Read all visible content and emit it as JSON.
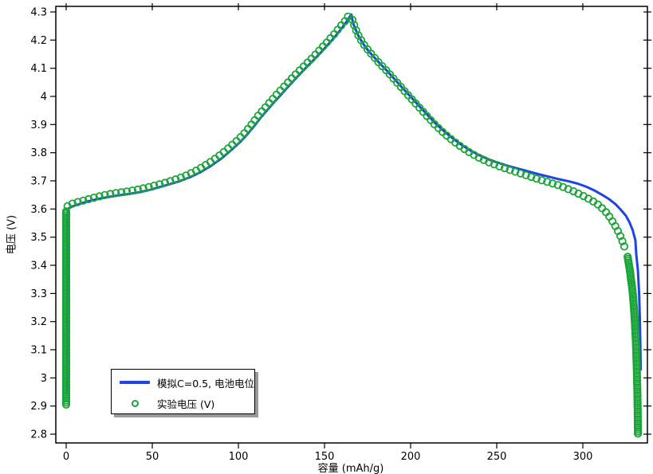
{
  "chart_data": {
    "type": "line",
    "title": "",
    "xlabel": "容量 (mAh/g)",
    "ylabel": "电压 (V)",
    "xlim": [
      -6.0,
      337.5
    ],
    "ylim": [
      2.769,
      4.3198
    ],
    "grid": false,
    "frame_color": "#000000",
    "x_ticks": {
      "values": [
        0,
        50,
        100,
        150,
        200,
        250,
        300
      ],
      "labels": [
        "0",
        "50",
        "100",
        "150",
        "200",
        "250",
        "300"
      ]
    },
    "y_ticks": {
      "values": [
        4.3,
        4.2,
        4.1,
        4.0,
        3.9,
        3.8,
        3.7,
        3.6,
        3.5,
        3.4,
        3.3,
        3.2,
        3.1,
        3.0,
        2.9,
        2.8
      ],
      "labels": [
        "4.3",
        "4.2",
        "4.1",
        "4",
        "3.9",
        "3.8",
        "3.7",
        "3.6",
        "3.5",
        "3.4",
        "3.3",
        "3.2",
        "3.1",
        "3",
        "2.9",
        "2.8"
      ]
    },
    "legend": {
      "position": "bottom-left",
      "entries": [
        {
          "swatch": "line",
          "label": "模拟C=0.5, 电池电位"
        },
        {
          "swatch": "circle-open",
          "label": "实验电压 (V)"
        }
      ]
    },
    "series": [
      {
        "name": "模拟C=0.5, 电池电位",
        "type": "line",
        "color": "#1c45e1",
        "width": 3,
        "points": [
          [
            0.5,
            2.95
          ],
          [
            0.5,
            3.3
          ],
          [
            0.6,
            3.45
          ],
          [
            0.7,
            3.54
          ],
          [
            0.9,
            3.585
          ],
          [
            1.5,
            3.602
          ],
          [
            4,
            3.61
          ],
          [
            8,
            3.618
          ],
          [
            12,
            3.626
          ],
          [
            18,
            3.635
          ],
          [
            24,
            3.642
          ],
          [
            30,
            3.648
          ],
          [
            36,
            3.653
          ],
          [
            42,
            3.659
          ],
          [
            48,
            3.667
          ],
          [
            54,
            3.677
          ],
          [
            60,
            3.688
          ],
          [
            66,
            3.699
          ],
          [
            72,
            3.713
          ],
          [
            78,
            3.731
          ],
          [
            84,
            3.753
          ],
          [
            90,
            3.779
          ],
          [
            96,
            3.81
          ],
          [
            101,
            3.838
          ],
          [
            105,
            3.864
          ],
          [
            109,
            3.893
          ],
          [
            113,
            3.925
          ],
          [
            117,
            3.953
          ],
          [
            121,
            3.981
          ],
          [
            125,
            4.008
          ],
          [
            129,
            4.035
          ],
          [
            134,
            4.068
          ],
          [
            139,
            4.1
          ],
          [
            144,
            4.131
          ],
          [
            149,
            4.163
          ],
          [
            154,
            4.197
          ],
          [
            158,
            4.226
          ],
          [
            161,
            4.25
          ],
          [
            163,
            4.267
          ],
          [
            165,
            4.286
          ],
          [
            165.6,
            4.291
          ],
          [
            166.5,
            4.262
          ],
          [
            168,
            4.238
          ],
          [
            170,
            4.211
          ],
          [
            173,
            4.182
          ],
          [
            176,
            4.158
          ],
          [
            179,
            4.138
          ],
          [
            182,
            4.118
          ],
          [
            186,
            4.093
          ],
          [
            190,
            4.066
          ],
          [
            194,
            4.039
          ],
          [
            198,
            4.012
          ],
          [
            202,
            3.986
          ],
          [
            206,
            3.959
          ],
          [
            210,
            3.933
          ],
          [
            214,
            3.907
          ],
          [
            218,
            3.884
          ],
          [
            222,
            3.863
          ],
          [
            226,
            3.844
          ],
          [
            230,
            3.826
          ],
          [
            235,
            3.807
          ],
          [
            240,
            3.791
          ],
          [
            245,
            3.777
          ],
          [
            250,
            3.766
          ],
          [
            256,
            3.754
          ],
          [
            262,
            3.744
          ],
          [
            268,
            3.734
          ],
          [
            274,
            3.724
          ],
          [
            280,
            3.715
          ],
          [
            286,
            3.706
          ],
          [
            292,
            3.698
          ],
          [
            297,
            3.69
          ],
          [
            302,
            3.679
          ],
          [
            307,
            3.665
          ],
          [
            311,
            3.651
          ],
          [
            315,
            3.636
          ],
          [
            319,
            3.617
          ],
          [
            322,
            3.598
          ],
          [
            325,
            3.576
          ],
          [
            327,
            3.554
          ],
          [
            329,
            3.524
          ],
          [
            330.5,
            3.489
          ],
          [
            331,
            3.44
          ],
          [
            332,
            3.38
          ],
          [
            332.7,
            3.3
          ],
          [
            333.1,
            3.21
          ],
          [
            333.4,
            3.12
          ],
          [
            333.6,
            3.03
          ]
        ]
      },
      {
        "name": "实验电压 (V)",
        "type": "scatter",
        "color": "#1ba538",
        "marker": "circle-open",
        "radius": 4.2,
        "stroke_width": 1.8,
        "segments": [
          {
            "spacing_px": 2.5,
            "points": [
              [
                0,
                2.905
              ],
              [
                0,
                3.595
              ]
            ]
          },
          {
            "spacing_px": 7,
            "points": [
              [
                0.8,
                3.61
              ],
              [
                4,
                3.62
              ],
              [
                10,
                3.63
              ],
              [
                16,
                3.64
              ],
              [
                22,
                3.649
              ],
              [
                28,
                3.656
              ],
              [
                34,
                3.661
              ],
              [
                40,
                3.667
              ],
              [
                46,
                3.675
              ],
              [
                52,
                3.684
              ],
              [
                58,
                3.694
              ],
              [
                64,
                3.706
              ],
              [
                70,
                3.72
              ],
              [
                76,
                3.738
              ],
              [
                82,
                3.76
              ],
              [
                88,
                3.785
              ],
              [
                94,
                3.815
              ],
              [
                99,
                3.842
              ],
              [
                103,
                3.866
              ],
              [
                107,
                3.895
              ],
              [
                111,
                3.928
              ],
              [
                115,
                3.956
              ],
              [
                119,
                3.984
              ],
              [
                123,
                4.012
              ],
              [
                127,
                4.038
              ],
              [
                132,
                4.07
              ],
              [
                137,
                4.101
              ],
              [
                142,
                4.131
              ],
              [
                147,
                4.163
              ],
              [
                152,
                4.196
              ],
              [
                156,
                4.224
              ],
              [
                159,
                4.247
              ],
              [
                162,
                4.268
              ],
              [
                164.5,
                4.292
              ],
              [
                165.3,
                4.3
              ]
            ]
          },
          {
            "spacing_px": 7,
            "points": [
              [
                166.2,
                4.272
              ],
              [
                168,
                4.24
              ],
              [
                170,
                4.212
              ],
              [
                173,
                4.183
              ],
              [
                176,
                4.159
              ],
              [
                179,
                4.138
              ],
              [
                182,
                4.117
              ],
              [
                186,
                4.092
              ],
              [
                190,
                4.064
              ],
              [
                194,
                4.036
              ],
              [
                198,
                4.008
              ],
              [
                202,
                3.981
              ],
              [
                206,
                3.954
              ],
              [
                210,
                3.927
              ],
              [
                214,
                3.9
              ],
              [
                218,
                3.877
              ],
              [
                222,
                3.855
              ],
              [
                226,
                3.836
              ],
              [
                230,
                3.818
              ],
              [
                235,
                3.798
              ],
              [
                240,
                3.781
              ],
              [
                245,
                3.767
              ],
              [
                250,
                3.755
              ],
              [
                256,
                3.742
              ],
              [
                262,
                3.73
              ],
              [
                268,
                3.718
              ],
              [
                274,
                3.706
              ],
              [
                280,
                3.695
              ],
              [
                286,
                3.684
              ],
              [
                291,
                3.672
              ],
              [
                296,
                3.659
              ],
              [
                301,
                3.644
              ],
              [
                305,
                3.631
              ],
              [
                309,
                3.615
              ],
              [
                313,
                3.592
              ],
              [
                316,
                3.568
              ],
              [
                319,
                3.538
              ],
              [
                321.5,
                3.508
              ],
              [
                323.5,
                3.477
              ],
              [
                325,
                3.45
              ]
            ]
          },
          {
            "spacing_px": 2.5,
            "points": [
              [
                326,
                3.43
              ],
              [
                327.5,
                3.375
              ],
              [
                329,
                3.3
              ],
              [
                330,
                3.22
              ],
              [
                330.8,
                3.13
              ],
              [
                331.3,
                3.04
              ],
              [
                331.7,
                2.94
              ],
              [
                331.9,
                2.86
              ],
              [
                332,
                2.8
              ]
            ]
          }
        ]
      }
    ]
  }
}
